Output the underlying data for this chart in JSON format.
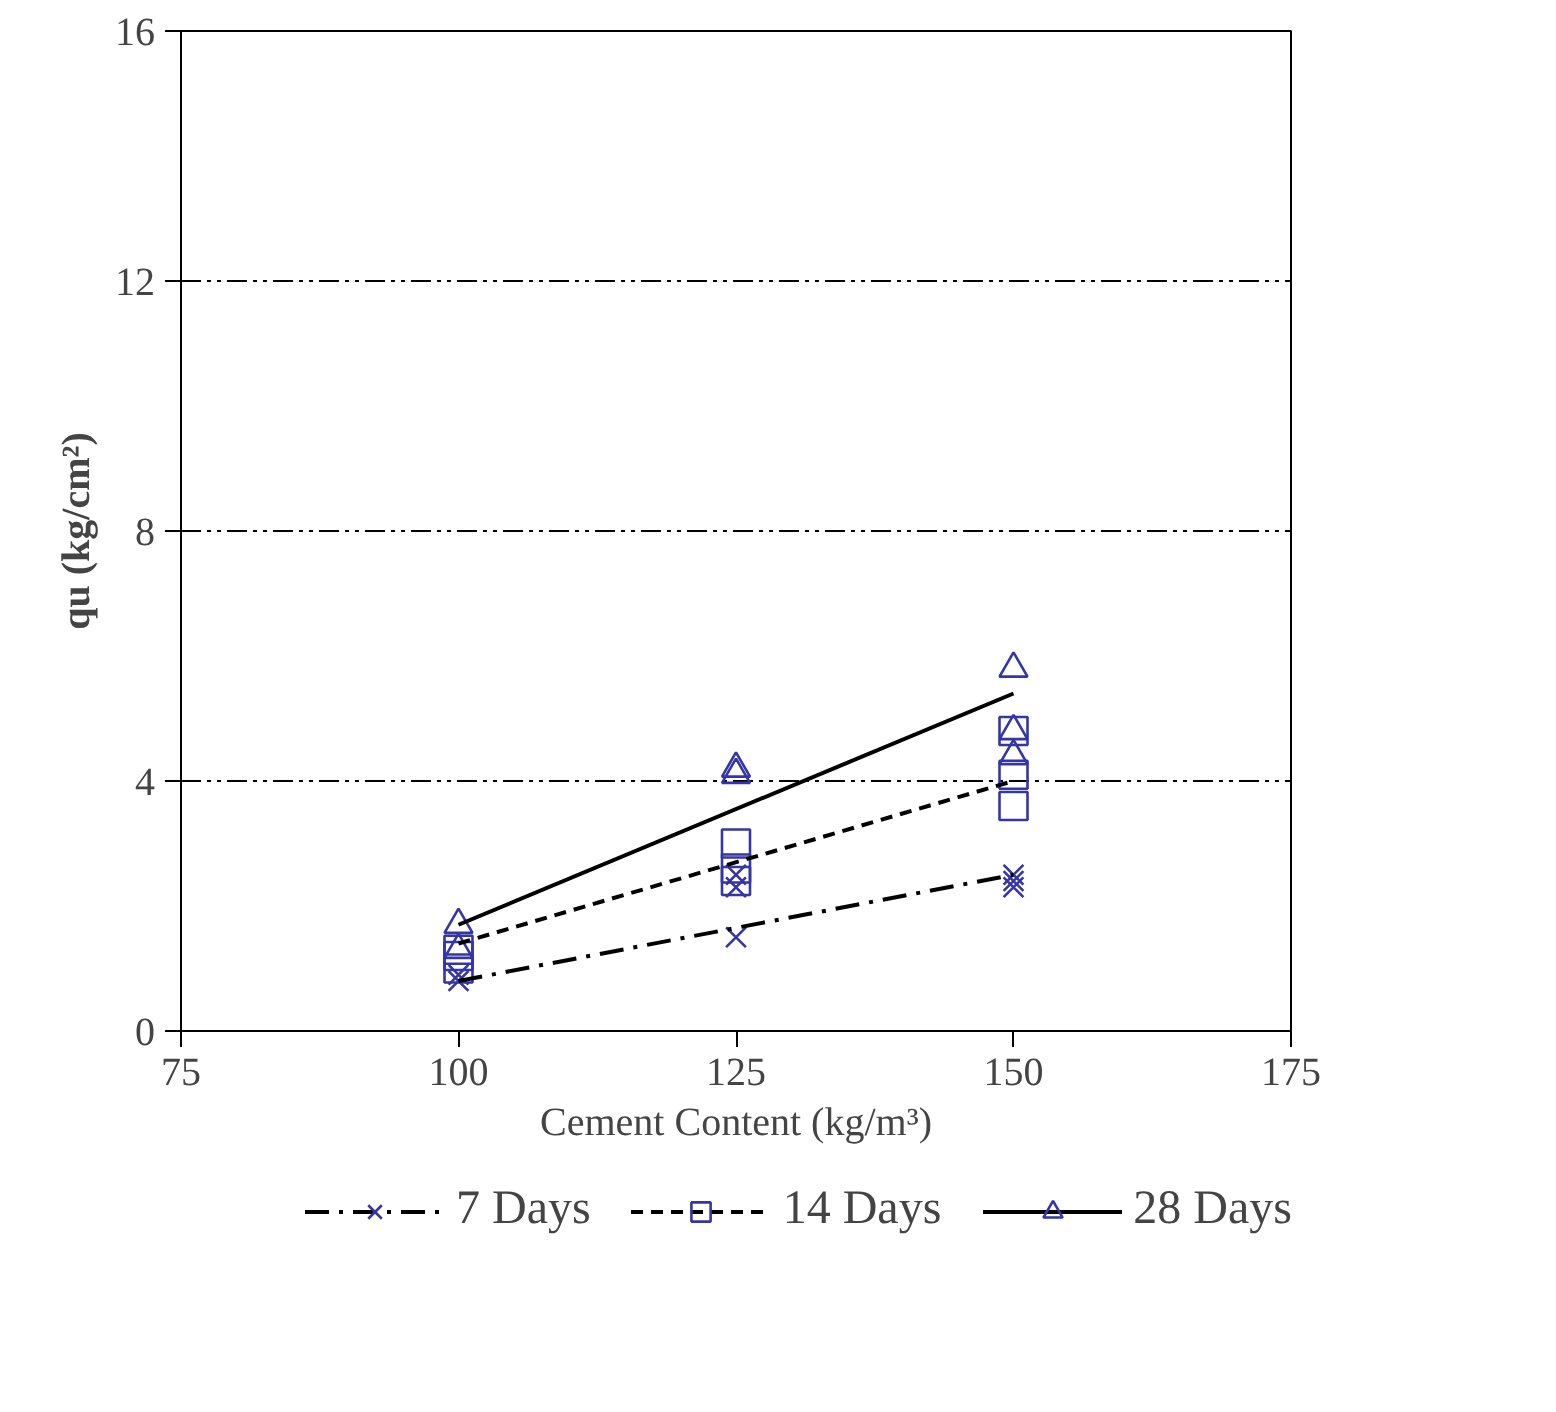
{
  "chart_data": {
    "type": "scatter",
    "xlabel": "Cement Content (kg/m³)",
    "ylabel": "qu (kg/cm²)",
    "xlim": [
      75,
      175
    ],
    "xticks": [
      75,
      100,
      125,
      150,
      175
    ],
    "ylim": [
      0,
      16
    ],
    "yticks": [
      0,
      4,
      8,
      12,
      16
    ],
    "grid": "y",
    "legend": "bottom",
    "series": [
      {
        "marker": "cross",
        "color": "#3535a5",
        "x": [
          100,
          100,
          125,
          125,
          125,
          150,
          150,
          150
        ],
        "values": [
          0.8,
          0.9,
          2.3,
          2.5,
          1.5,
          2.5,
          2.3,
          2.4
        ]
      },
      {
        "marker": "square",
        "color": "#3535a5",
        "x": [
          100,
          100,
          100,
          125,
          125,
          125,
          150,
          150,
          150
        ],
        "values": [
          1.0,
          1.2,
          1.3,
          3.0,
          2.6,
          2.4,
          4.8,
          4.1,
          3.6
        ]
      },
      {
        "marker": "triangle",
        "color": "#3535a5",
        "x": [
          100,
          100,
          125,
          125,
          150,
          150,
          150
        ],
        "values": [
          1.7,
          1.3,
          4.2,
          4.1,
          5.8,
          4.8,
          4.4
        ]
      },
      {
        "name": "7 Days",
        "type": "line",
        "line_style": "dashdot",
        "color": "#000000",
        "x": [
          100,
          150
        ],
        "values": [
          0.8,
          2.5
        ]
      },
      {
        "name": "14 Days",
        "type": "line",
        "line_style": "dashed",
        "color": "#000000",
        "x": [
          100,
          150
        ],
        "values": [
          1.4,
          4.0
        ]
      },
      {
        "name": "28 Days",
        "type": "line",
        "line_style": "solid",
        "color": "#000000",
        "x": [
          100,
          150
        ],
        "values": [
          1.7,
          5.4
        ]
      }
    ]
  }
}
